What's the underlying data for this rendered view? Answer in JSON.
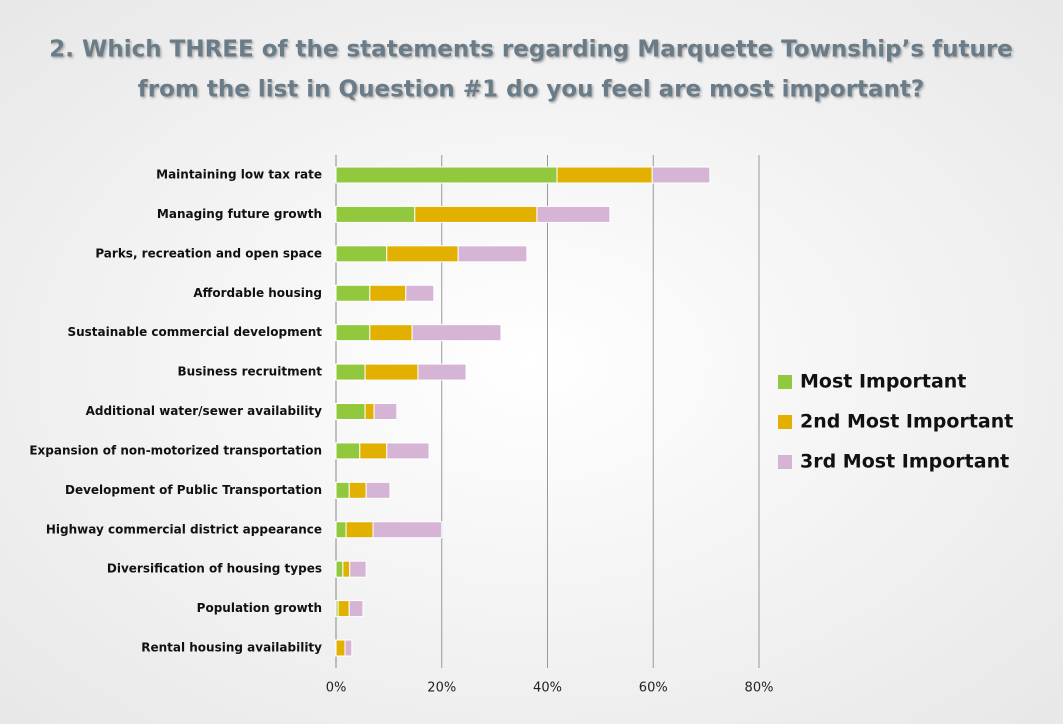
{
  "chart_data": {
    "type": "stacked_bar_horizontal",
    "title": [
      "2. Which THREE of the statements regarding Marquette Township’s future",
      "from the list in Question #1 do you feel are most important?"
    ],
    "categories": [
      "Maintaining low tax rate",
      "Managing future growth",
      "Parks, recreation and open space",
      "Affordable housing",
      "Sustainable commercial development",
      "Business recruitment",
      "Additional water/sewer availability",
      "Expansion of non-motorized transportation",
      "Development of Public Transportation",
      "Highway commercial district appearance",
      "Diversification of housing types",
      "Population growth",
      "Rental housing availability"
    ],
    "series": [
      {
        "name": "Most Important",
        "color": "#92c83e",
        "values": [
          41.8,
          14.9,
          9.6,
          6.4,
          6.4,
          5.5,
          5.5,
          4.5,
          2.5,
          1.9,
          1.3,
          0.4,
          0
        ]
      },
      {
        "name": "2nd Most Important",
        "color": "#e1b000",
        "values": [
          18.0,
          23.1,
          13.5,
          6.8,
          8.0,
          10.0,
          1.7,
          5.1,
          3.2,
          5.1,
          1.3,
          2.1,
          1.7
        ]
      },
      {
        "name": "3rd Most Important",
        "color": "#d6b4d6",
        "values": [
          10.9,
          13.8,
          13.0,
          5.3,
          16.8,
          9.1,
          4.3,
          8.0,
          4.5,
          13.0,
          3.1,
          2.6,
          1.3
        ]
      }
    ],
    "xlim": [
      0,
      80
    ],
    "xticks": [
      {
        "value": 0,
        "label": "0%"
      },
      {
        "value": 20,
        "label": "20%"
      },
      {
        "value": 40,
        "label": "40%"
      },
      {
        "value": 60,
        "label": "60%"
      },
      {
        "value": 80,
        "label": "80%"
      }
    ],
    "grid": true,
    "legend": "right"
  }
}
